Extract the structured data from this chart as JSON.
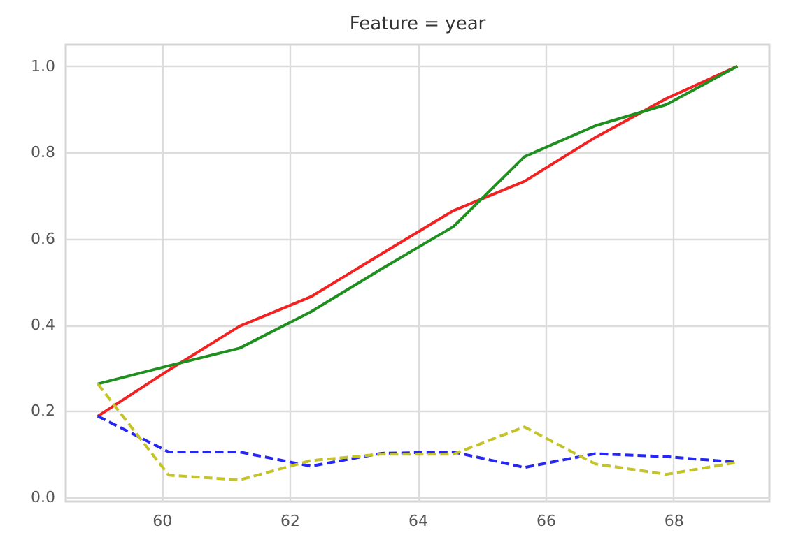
{
  "chart_data": {
    "type": "line",
    "title": "Feature = year",
    "x": [
      59,
      60.11,
      61.22,
      62.33,
      63.44,
      64.56,
      65.67,
      66.78,
      67.89,
      69
    ],
    "series": [
      {
        "color": "#f22222",
        "line_style": "solid",
        "values": [
          0.188,
          0.295,
          0.397,
          0.465,
          0.565,
          0.665,
          0.733,
          0.835,
          0.925,
          1.0
        ]
      },
      {
        "color": "#1f8f1f",
        "line_style": "solid",
        "values": [
          0.263,
          0.305,
          0.346,
          0.43,
          0.53,
          0.628,
          0.79,
          0.862,
          0.911,
          1.0
        ]
      },
      {
        "color": "#2626f5",
        "line_style": "dashed",
        "values": [
          0.188,
          0.105,
          0.105,
          0.072,
          0.102,
          0.105,
          0.069,
          0.101,
          0.094,
          0.081
        ]
      },
      {
        "color": "#c4c42a",
        "line_style": "dashed",
        "values": [
          0.263,
          0.051,
          0.04,
          0.085,
          0.1,
          0.1,
          0.163,
          0.077,
          0.053,
          0.081
        ]
      }
    ],
    "xlim": [
      58.5,
      69.5
    ],
    "xticks": [
      60,
      62,
      64,
      66,
      68
    ],
    "ylim": [
      -0.01,
      1.05
    ],
    "yticks": [
      {
        "value": 0,
        "label": "0.0"
      },
      0.2,
      0.4,
      0.6,
      0.8,
      {
        "value": 1,
        "label": "1.0"
      }
    ],
    "grid": true,
    "marker": "none"
  }
}
